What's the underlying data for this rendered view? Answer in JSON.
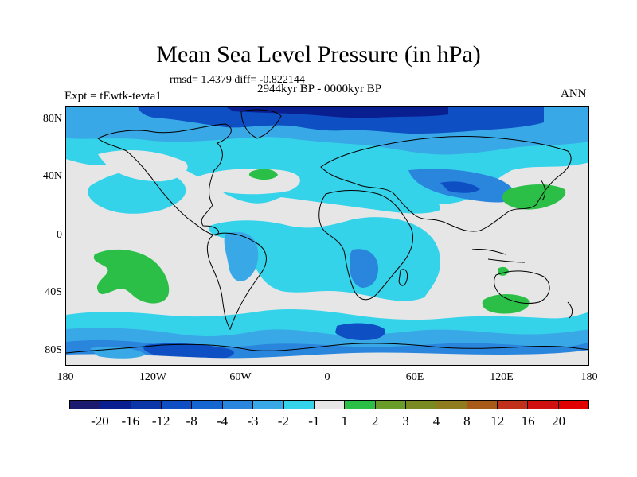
{
  "title": "Mean Sea Level Pressure (in hPa)",
  "stats": "rmsd= 1.4379 diff= -0.822144",
  "period": "2944kyr BP - 0000kyr BP",
  "experiment": "Expt = tEwtk-tevta1",
  "season": "ANN",
  "lat_labels": [
    "80N",
    "40N",
    "0",
    "40S",
    "80S"
  ],
  "lon_labels": [
    "180",
    "120W",
    "60W",
    "0",
    "60E",
    "120E",
    "180"
  ],
  "legend": {
    "labels": [
      "-20",
      "-16",
      "-12",
      "-8",
      "-4",
      "-3",
      "-2",
      "-1",
      "1",
      "2",
      "3",
      "4",
      "8",
      "12",
      "16",
      "20"
    ],
    "colors": [
      "#1a1a6e",
      "#0a1f8f",
      "#0b36a8",
      "#0e4fc4",
      "#1566d0",
      "#2a86dc",
      "#38a9e6",
      "#35d3ea",
      "#e6e6e6",
      "#2bbf48",
      "#6a9c2a",
      "#7a8a22",
      "#8e7c1e",
      "#a85a18",
      "#c0301a",
      "#d01010",
      "#e00000"
    ]
  },
  "colors": {
    "land_outline": "#000000",
    "neutral": "#e6e6e6",
    "light_blue": "#35d3ea",
    "mid_blue": "#38a9e6",
    "blue": "#2a86dc",
    "deep_blue": "#0e4fc4",
    "green": "#2bbf48"
  }
}
